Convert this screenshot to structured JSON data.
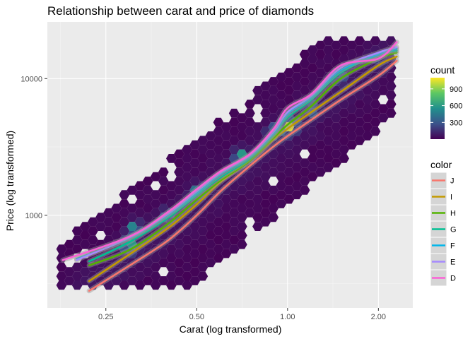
{
  "chart_data": {
    "type": "hexbin-with-smooth-lines",
    "title": "Relationship between carat and price of diamonds",
    "xlabel": "Carat (log transformed)",
    "ylabel": "Price (log transformed)",
    "x_scale": "log",
    "y_scale": "log",
    "xlim": [
      0.16,
      2.6
    ],
    "ylim": [
      210,
      26000
    ],
    "x_ticks": [
      {
        "value": 0.25,
        "label": "0.25"
      },
      {
        "value": 0.5,
        "label": "0.50"
      },
      {
        "value": 1.0,
        "label": "1.00"
      },
      {
        "value": 2.0,
        "label": "2.00"
      }
    ],
    "y_ticks": [
      {
        "value": 1000,
        "label": "1000"
      },
      {
        "value": 10000,
        "label": "10000"
      }
    ],
    "grid": true,
    "fill_legend": {
      "title": "count",
      "ticks": [
        {
          "value": 300,
          "label": "300"
        },
        {
          "value": 600,
          "label": "600"
        },
        {
          "value": 900,
          "label": "900"
        }
      ],
      "range": [
        1,
        1100
      ],
      "colors": [
        "#440154",
        "#3b528b",
        "#21908d",
        "#5dc863",
        "#fde725"
      ]
    },
    "hex_density_peaks": [
      {
        "carat": 1.01,
        "price": 4500,
        "count": 1000
      },
      {
        "carat": 0.3,
        "price": 600,
        "count": 600
      },
      {
        "carat": 0.31,
        "price": 800,
        "count": 550
      },
      {
        "carat": 0.7,
        "price": 2700,
        "count": 600
      },
      {
        "carat": 0.9,
        "price": 4000,
        "count": 500
      },
      {
        "carat": 0.5,
        "price": 1500,
        "count": 400
      },
      {
        "carat": 1.2,
        "price": 6000,
        "count": 350
      },
      {
        "carat": 0.4,
        "price": 1000,
        "count": 350
      },
      {
        "carat": 1.5,
        "price": 10000,
        "count": 250
      },
      {
        "carat": 2.0,
        "price": 14000,
        "count": 200
      }
    ],
    "color_legend": {
      "title": "color",
      "entries": [
        {
          "label": "J",
          "color": "#f8766d"
        },
        {
          "label": "I",
          "color": "#c49a00"
        },
        {
          "label": "H",
          "color": "#53b400"
        },
        {
          "label": "G",
          "color": "#00c094"
        },
        {
          "label": "F",
          "color": "#00b6eb"
        },
        {
          "label": "E",
          "color": "#a58aff"
        },
        {
          "label": "D",
          "color": "#fb61d7"
        }
      ]
    },
    "series": [
      {
        "name": "J",
        "color": "#f8766d",
        "x": [
          0.22,
          0.3,
          0.4,
          0.5,
          0.6,
          0.75,
          0.9,
          1.0,
          1.2,
          1.5,
          2.0,
          2.3
        ],
        "y": [
          280,
          430,
          650,
          1000,
          1500,
          2300,
          3200,
          3800,
          5000,
          7000,
          10500,
          13500
        ]
      },
      {
        "name": "I",
        "color": "#c49a00",
        "x": [
          0.22,
          0.3,
          0.4,
          0.5,
          0.6,
          0.75,
          0.9,
          1.0,
          1.2,
          1.5,
          2.0,
          2.3
        ],
        "y": [
          330,
          520,
          800,
          1200,
          1750,
          2500,
          3600,
          4300,
          5700,
          8000,
          12500,
          14500
        ]
      },
      {
        "name": "H",
        "color": "#53b400",
        "x": [
          0.22,
          0.3,
          0.4,
          0.5,
          0.6,
          0.75,
          0.9,
          1.0,
          1.2,
          1.5,
          2.0,
          2.3
        ],
        "y": [
          430,
          560,
          860,
          1300,
          1800,
          2500,
          3700,
          4600,
          6300,
          10000,
          14000,
          15500
        ]
      },
      {
        "name": "G",
        "color": "#00c094",
        "x": [
          0.22,
          0.3,
          0.4,
          0.5,
          0.6,
          0.75,
          0.9,
          1.0,
          1.2,
          1.5,
          2.0,
          2.3
        ],
        "y": [
          460,
          640,
          950,
          1400,
          1900,
          2600,
          3900,
          5200,
          7000,
          11000,
          15000,
          16000
        ]
      },
      {
        "name": "F",
        "color": "#00b6eb",
        "x": [
          0.2,
          0.3,
          0.4,
          0.5,
          0.6,
          0.75,
          0.9,
          1.0,
          1.2,
          1.5,
          2.0,
          2.3
        ],
        "y": [
          480,
          680,
          1000,
          1450,
          2000,
          2700,
          4000,
          5500,
          7300,
          11500,
          15000,
          16500
        ]
      },
      {
        "name": "E",
        "color": "#a58aff",
        "x": [
          0.2,
          0.3,
          0.4,
          0.5,
          0.6,
          0.75,
          0.9,
          1.0,
          1.2,
          1.5,
          2.0,
          2.3
        ],
        "y": [
          470,
          690,
          1020,
          1500,
          2050,
          2750,
          4100,
          5700,
          7500,
          12000,
          15500,
          17000
        ]
      },
      {
        "name": "D",
        "color": "#fb61d7",
        "x": [
          0.18,
          0.3,
          0.4,
          0.5,
          0.6,
          0.75,
          0.9,
          1.0,
          1.2,
          1.5,
          2.0,
          2.3
        ],
        "y": [
          470,
          700,
          1050,
          1550,
          2100,
          2800,
          4300,
          6100,
          7700,
          12500,
          14000,
          18500
        ]
      }
    ]
  }
}
